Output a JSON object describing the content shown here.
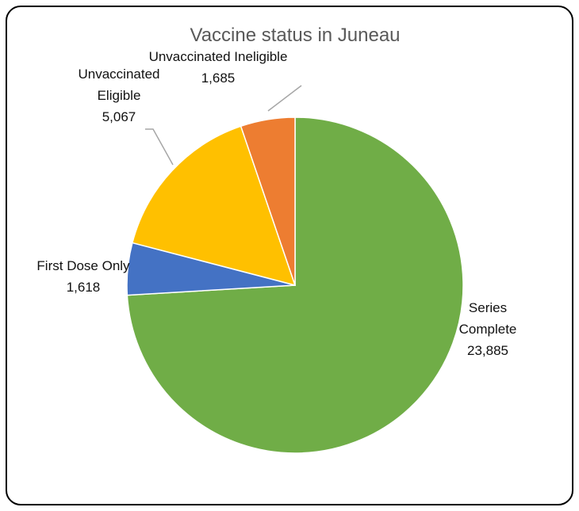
{
  "chart_data": {
    "type": "pie",
    "title": "Vaccine status in Juneau",
    "categories": [
      "Series Complete",
      "First Dose Only",
      "Unvaccinated Eligible",
      "Unvaccinated Ineligible"
    ],
    "values": [
      23885,
      1618,
      5067,
      1685
    ],
    "value_labels": [
      "23,885",
      "1,618",
      "5,067",
      "1,685"
    ],
    "colors": [
      "#70ad47",
      "#4472c4",
      "#ffc000",
      "#ed7d31"
    ]
  }
}
